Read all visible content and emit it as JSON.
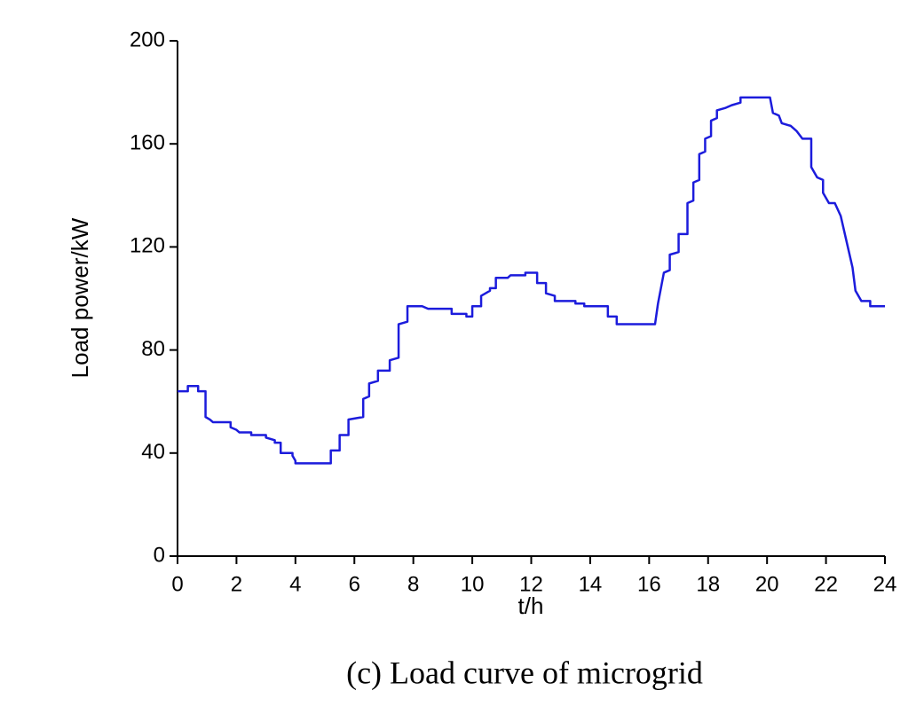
{
  "chart_data": {
    "type": "line",
    "xlabel": "t/h",
    "ylabel": "Load power/kW",
    "caption": "(c) Load curve of microgrid",
    "xlim": [
      0,
      24
    ],
    "ylim": [
      0,
      200
    ],
    "xticks": [
      0,
      2,
      4,
      6,
      8,
      10,
      12,
      14,
      16,
      18,
      20,
      22,
      24
    ],
    "yticks": [
      0,
      40,
      80,
      120,
      160,
      200
    ],
    "series": [
      {
        "color": "#1c1cdc",
        "x": [
          0,
          0.35,
          0.35,
          0.7,
          0.7,
          0.95,
          0.95,
          1.1,
          1.2,
          1.8,
          1.8,
          2.0,
          2.1,
          2.5,
          2.5,
          3.0,
          3.0,
          3.3,
          3.3,
          3.5,
          3.5,
          3.9,
          3.9,
          4.0,
          4.0,
          5.2,
          5.2,
          5.5,
          5.5,
          5.8,
          5.8,
          6.3,
          6.3,
          6.5,
          6.5,
          6.8,
          6.8,
          7.2,
          7.2,
          7.5,
          7.5,
          7.8,
          7.8,
          8.3,
          8.5,
          9.3,
          9.3,
          9.8,
          9.8,
          10.0,
          10.0,
          10.3,
          10.3,
          10.6,
          10.6,
          10.8,
          10.8,
          11.2,
          11.3,
          11.8,
          11.8,
          12.2,
          12.2,
          12.5,
          12.5,
          12.8,
          12.8,
          13.5,
          13.5,
          13.8,
          13.8,
          14.6,
          14.6,
          14.9,
          14.9,
          16.2,
          16.3,
          16.5,
          16.7,
          16.7,
          17.0,
          17.0,
          17.3,
          17.3,
          17.5,
          17.5,
          17.7,
          17.7,
          17.9,
          17.9,
          18.1,
          18.1,
          18.3,
          18.3,
          18.6,
          18.8,
          19.1,
          19.1,
          20.1,
          20.2,
          20.4,
          20.5,
          20.8,
          21.0,
          21.2,
          21.5,
          21.5,
          21.7,
          21.9,
          21.9,
          22.1,
          22.3,
          22.5,
          22.7,
          22.9,
          23.0,
          23.2,
          23.5,
          23.5,
          24.0
        ],
        "values": [
          64,
          64,
          66,
          66,
          64,
          64,
          54,
          53,
          52,
          52,
          50,
          49,
          48,
          48,
          47,
          47,
          46,
          45,
          44,
          44,
          40,
          40,
          39,
          37,
          36,
          36,
          41,
          41,
          47,
          47,
          53,
          54,
          61,
          62,
          67,
          68,
          72,
          72,
          76,
          77,
          90,
          91,
          97,
          97,
          96,
          96,
          94,
          94,
          93,
          93,
          97,
          97,
          101,
          103,
          104,
          104,
          108,
          108,
          109,
          109,
          110,
          110,
          106,
          106,
          102,
          101,
          99,
          99,
          98,
          98,
          97,
          97,
          93,
          93,
          90,
          90,
          98,
          110,
          111,
          117,
          118,
          125,
          125,
          137,
          138,
          145,
          146,
          156,
          157,
          162,
          163,
          169,
          170,
          173,
          174,
          175,
          176,
          178,
          178,
          172,
          171,
          168,
          167,
          165,
          162,
          162,
          151,
          147,
          146,
          141,
          137,
          137,
          132,
          122,
          112,
          103,
          99,
          99,
          97,
          97
        ]
      }
    ]
  }
}
